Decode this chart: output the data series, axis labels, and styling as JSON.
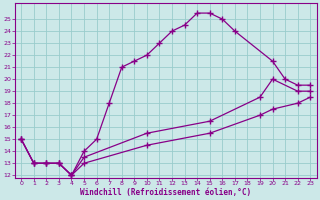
{
  "xlabel": "Windchill (Refroidissement éolien,°C)",
  "xlim": [
    -0.5,
    23.5
  ],
  "ylim": [
    11.8,
    26.3
  ],
  "xticks": [
    0,
    1,
    2,
    3,
    4,
    5,
    6,
    7,
    8,
    9,
    10,
    11,
    12,
    13,
    14,
    15,
    16,
    17,
    18,
    19,
    20,
    21,
    22,
    23
  ],
  "yticks": [
    12,
    13,
    14,
    15,
    16,
    17,
    18,
    19,
    20,
    21,
    22,
    23,
    24,
    25
  ],
  "line_color": "#880088",
  "bg_color": "#cce8e8",
  "grid_color": "#99cccc",
  "curve1_x": [
    0,
    1,
    2,
    3,
    4,
    5,
    6,
    7,
    8,
    9,
    10,
    11,
    12,
    13,
    14,
    15,
    16,
    17,
    20,
    21,
    22,
    23
  ],
  "curve1_y": [
    15,
    13,
    13,
    13,
    12,
    14,
    15,
    18,
    21,
    21.5,
    22,
    23,
    24,
    24.5,
    25.5,
    25.5,
    25,
    24,
    21.5,
    20,
    19.5,
    19.5
  ],
  "curve2_x": [
    0,
    1,
    2,
    3,
    4,
    5,
    10,
    15,
    19,
    20,
    22,
    23
  ],
  "curve2_y": [
    15,
    13,
    13,
    13,
    12,
    13.5,
    15.5,
    16.5,
    18.5,
    20,
    19,
    19
  ],
  "curve3_x": [
    0,
    1,
    2,
    3,
    4,
    5,
    10,
    15,
    19,
    20,
    22,
    23
  ],
  "curve3_y": [
    15,
    13,
    13,
    13,
    12,
    13,
    14.5,
    15.5,
    17,
    17.5,
    18,
    18.5
  ]
}
